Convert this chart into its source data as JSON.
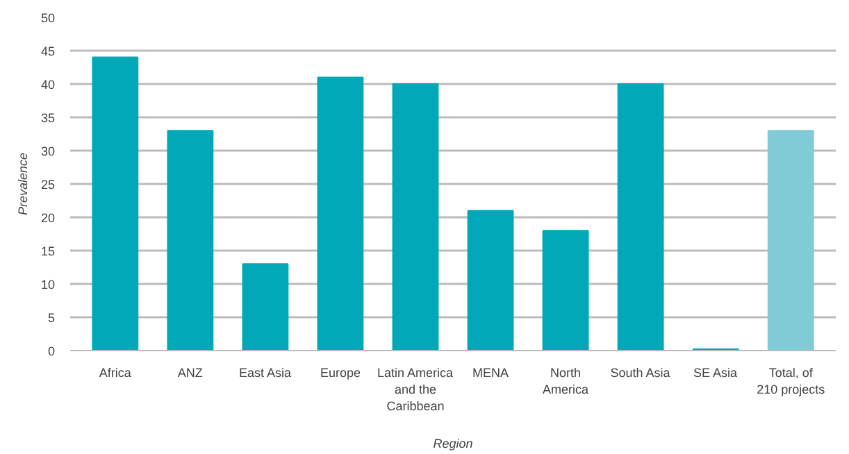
{
  "chart_data": {
    "type": "bar",
    "xlabel": "Region",
    "ylabel": "Prevalence",
    "categories": [
      "Africa",
      "ANZ",
      "East Asia",
      "Europe",
      "Latin America\nand the\nCaribbean",
      "MENA",
      "North\nAmerica",
      "South Asia",
      "SE Asia",
      "Total, of\n210 projects"
    ],
    "values": [
      44,
      33,
      13,
      41,
      40,
      21,
      18,
      40,
      0.2,
      33
    ],
    "colors": [
      "#00a8b8",
      "#00a8b8",
      "#00a8b8",
      "#00a8b8",
      "#00a8b8",
      "#00a8b8",
      "#00a8b8",
      "#00a8b8",
      "#00a8b8",
      "#80cbd5"
    ],
    "ylim": [
      0,
      50
    ],
    "yticks": [
      0,
      5,
      10,
      15,
      20,
      25,
      30,
      35,
      40,
      45,
      50
    ],
    "grid": "y"
  }
}
